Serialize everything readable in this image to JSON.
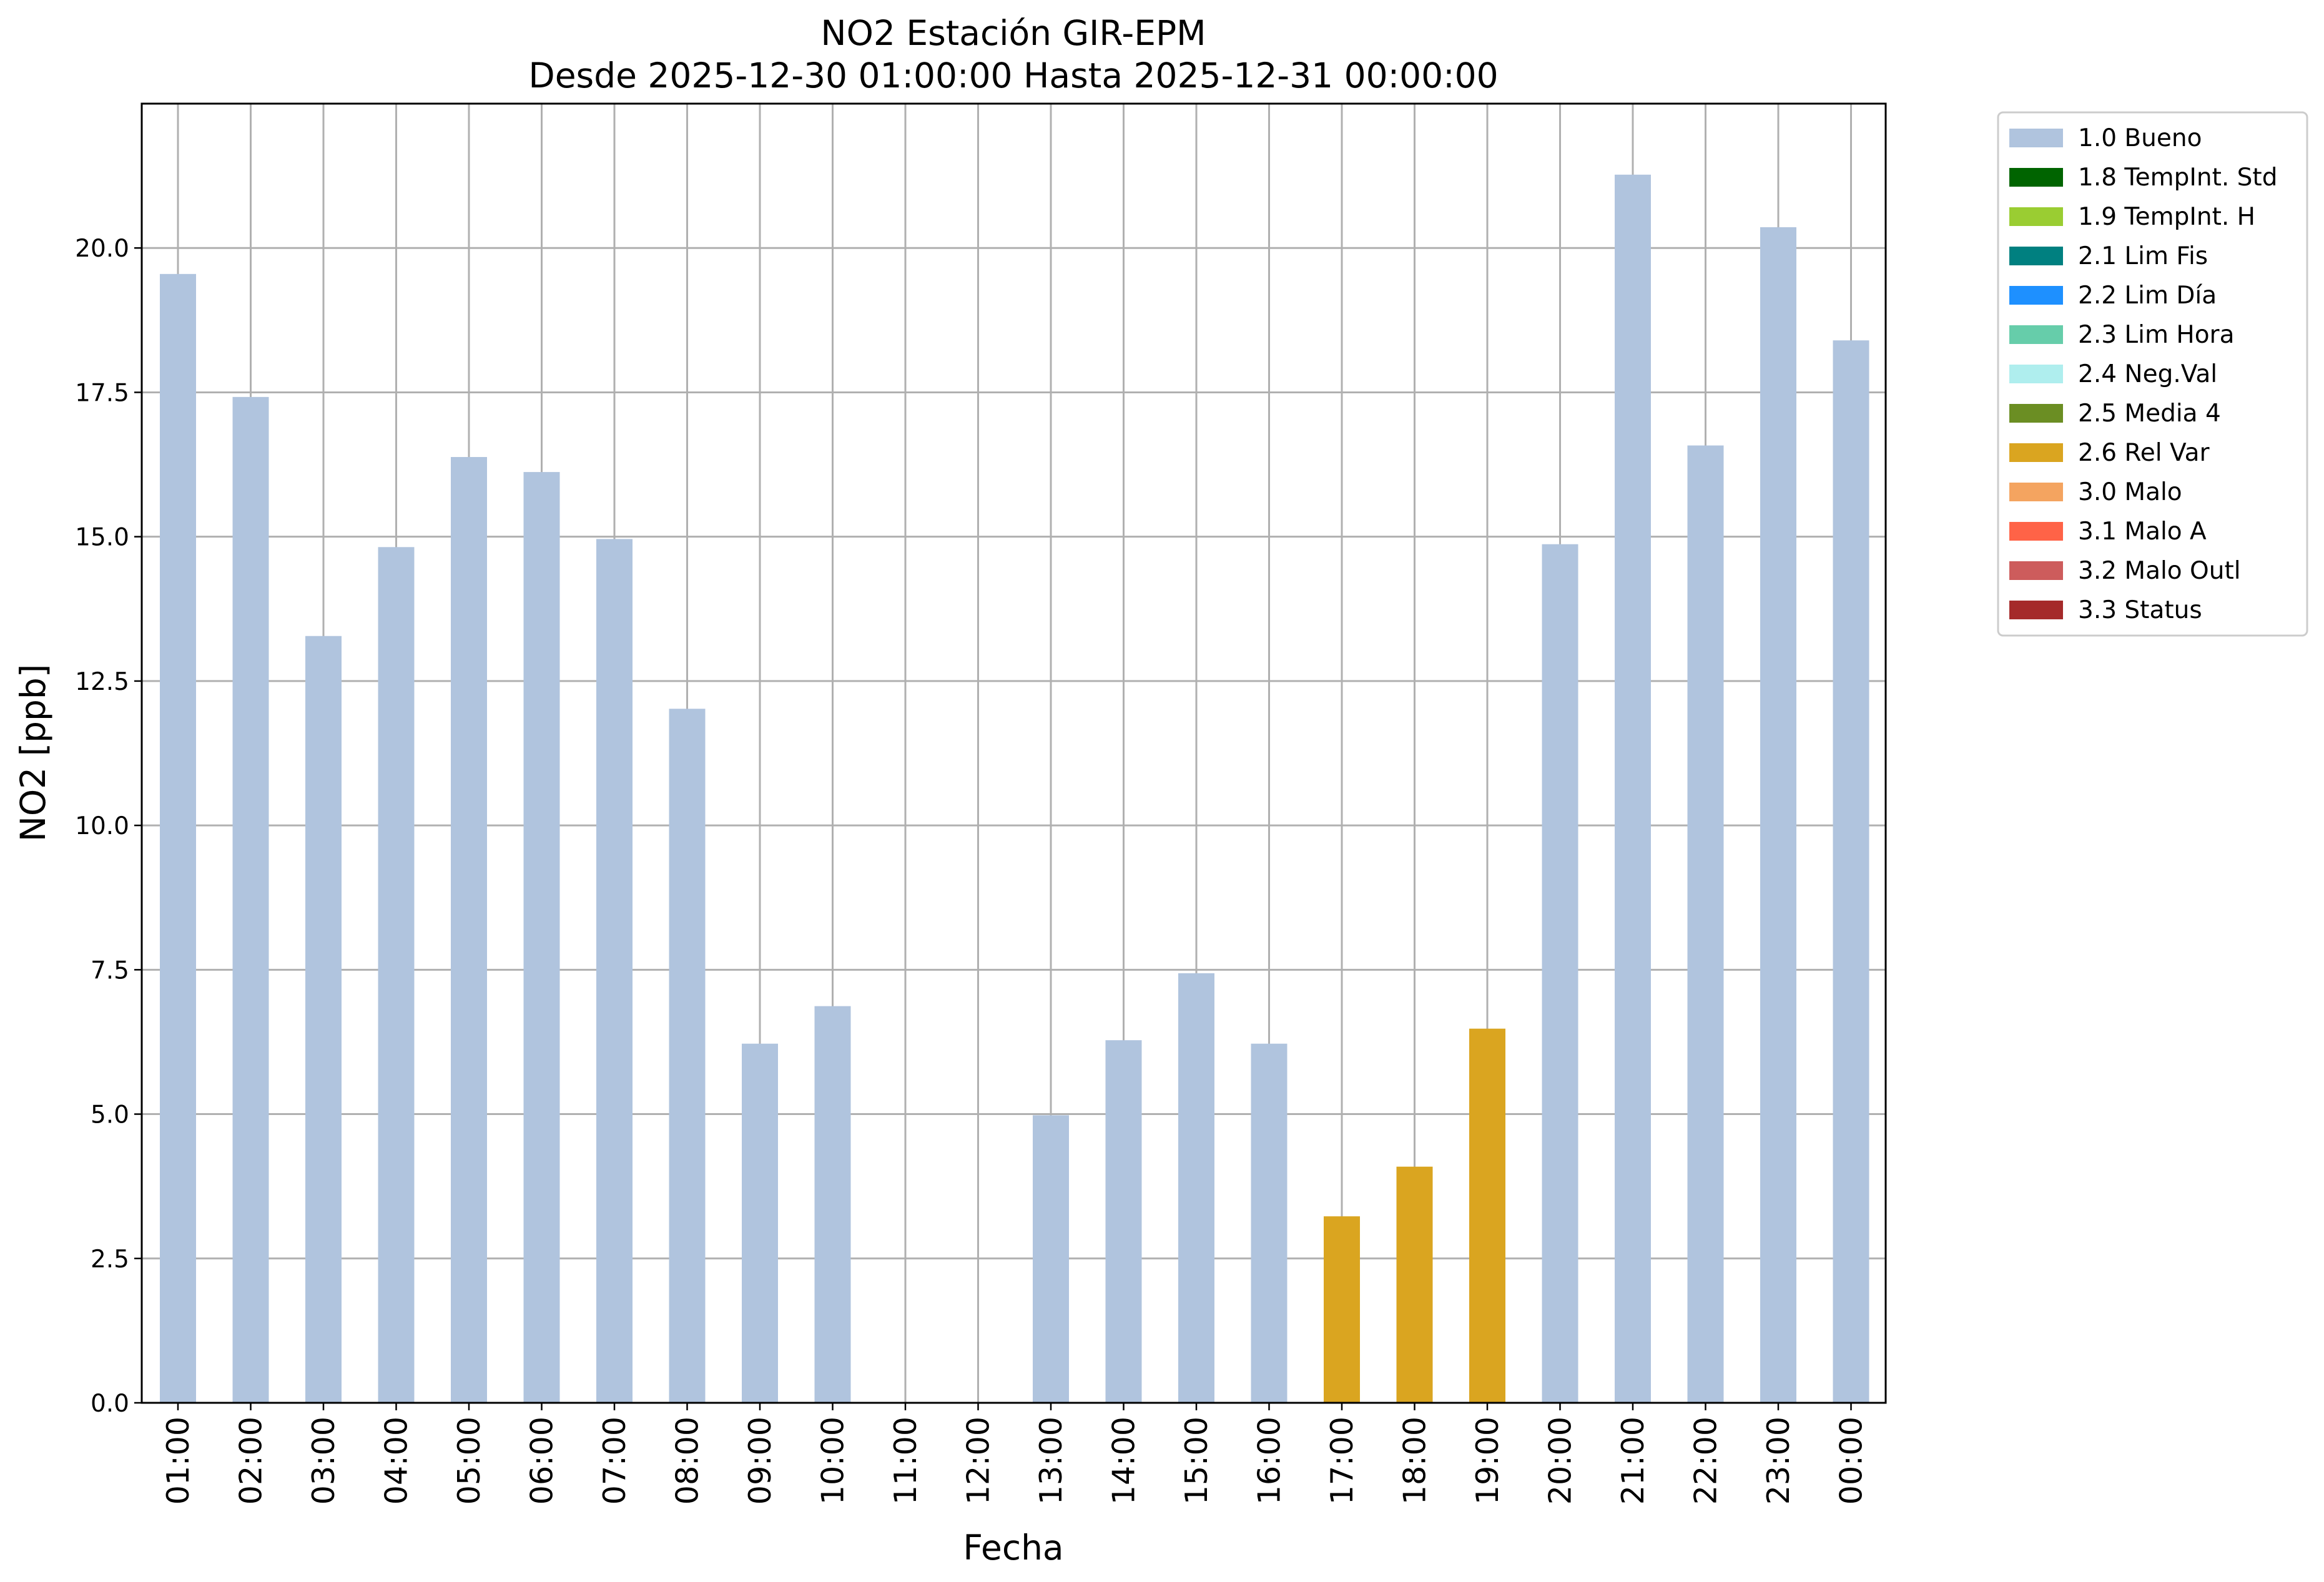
{
  "chart_data": {
    "type": "bar",
    "title": "NO2 Estación GIR-EPM",
    "subtitle": "Desde 2025-12-30 01:00:00 Hasta 2025-12-31 00:00:00",
    "xlabel": "Fecha",
    "ylabel": "NO2 [ppb]",
    "ylim": [
      0,
      22.5
    ],
    "yticks": [
      "0.0",
      "2.5",
      "5.0",
      "7.5",
      "10.0",
      "12.5",
      "15.0",
      "17.5",
      "20.0"
    ],
    "grid": true,
    "legend_position": "outside-right",
    "categories": [
      "01:00",
      "02:00",
      "03:00",
      "04:00",
      "05:00",
      "06:00",
      "07:00",
      "08:00",
      "09:00",
      "10:00",
      "11:00",
      "12:00",
      "13:00",
      "14:00",
      "15:00",
      "16:00",
      "17:00",
      "18:00",
      "19:00",
      "20:00",
      "21:00",
      "22:00",
      "23:00",
      "00:00"
    ],
    "values": [
      19.55,
      17.42,
      13.28,
      14.82,
      16.38,
      16.12,
      14.96,
      12.02,
      6.22,
      6.87,
      null,
      null,
      4.98,
      6.28,
      7.44,
      6.22,
      3.23,
      4.09,
      6.48,
      14.87,
      21.27,
      16.58,
      20.36,
      18.4
    ],
    "flags": [
      "1.0 Bueno",
      "1.0 Bueno",
      "1.0 Bueno",
      "1.0 Bueno",
      "1.0 Bueno",
      "1.0 Bueno",
      "1.0 Bueno",
      "1.0 Bueno",
      "1.0 Bueno",
      "1.0 Bueno",
      null,
      null,
      "1.0 Bueno",
      "1.0 Bueno",
      "1.0 Bueno",
      "1.0 Bueno",
      "2.6 Rel Var",
      "2.6 Rel Var",
      "2.6 Rel Var",
      "1.0 Bueno",
      "1.0 Bueno",
      "1.0 Bueno",
      "1.0 Bueno",
      "1.0 Bueno"
    ],
    "legend": [
      {
        "name": "1.0 Bueno",
        "color": "#b0c4de"
      },
      {
        "name": "1.8 TempInt. Std",
        "color": "#006400"
      },
      {
        "name": "1.9 TempInt. H",
        "color": "#9acd32"
      },
      {
        "name": "2.1 Lim Fis",
        "color": "#008080"
      },
      {
        "name": "2.2 Lim Día",
        "color": "#1e90ff"
      },
      {
        "name": "2.3 Lim Hora",
        "color": "#66cdaa"
      },
      {
        "name": "2.4 Neg.Val",
        "color": "#afeeee"
      },
      {
        "name": "2.5 Media 4",
        "color": "#6b8e23"
      },
      {
        "name": "2.6 Rel Var",
        "color": "#daa520"
      },
      {
        "name": "3.0 Malo",
        "color": "#f4a460"
      },
      {
        "name": "3.1 Malo A",
        "color": "#ff6347"
      },
      {
        "name": "3.2 Malo Outl",
        "color": "#cd5c5c"
      },
      {
        "name": "3.3 Status",
        "color": "#a52a2a"
      }
    ]
  }
}
